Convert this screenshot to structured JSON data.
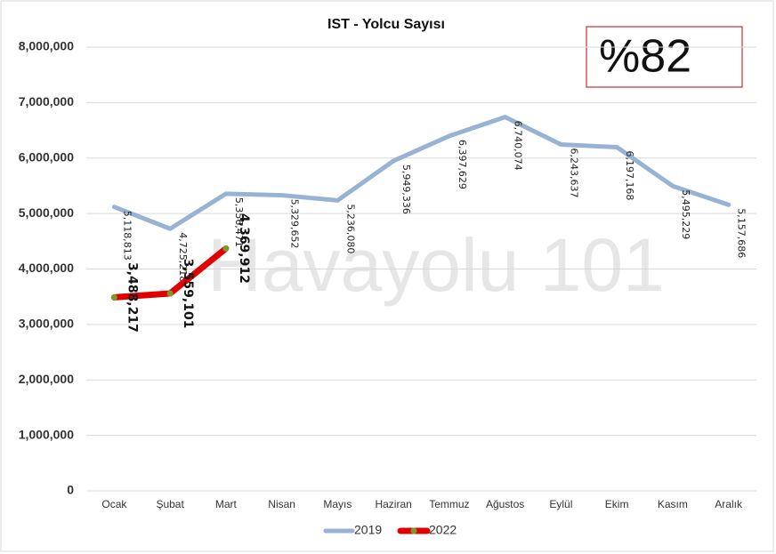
{
  "chart_data": {
    "type": "line",
    "title": "IST - Yolcu Sayısı",
    "annotation": "%82",
    "watermark": "Havayolu 101",
    "categories": [
      "Ocak",
      "Şubat",
      "Mart",
      "Nisan",
      "Mayıs",
      "Haziran",
      "Temmuz",
      "Ağustos",
      "Eylül",
      "Ekim",
      "Kasım",
      "Aralık"
    ],
    "series": [
      {
        "name": "2019",
        "color": "#98b2d3",
        "values": [
          5118813,
          4725218,
          5356471,
          5329652,
          5236080,
          5949336,
          6397629,
          6740074,
          6243637,
          6197168,
          5495229,
          5157686
        ],
        "value_labels": [
          "5,118,813",
          "4,725,218",
          "5,356,471",
          "5,329,652",
          "5,236,080",
          "5,949,336",
          "6,397,629",
          "6,740,074",
          "6,243,637",
          "6,197,168",
          "5,495,229",
          "5,157,686"
        ]
      },
      {
        "name": "2022",
        "color": "#e00000",
        "marker_color": "#7a9a2a",
        "values": [
          3488217,
          3559101,
          4369912,
          null,
          null,
          null,
          null,
          null,
          null,
          null,
          null,
          null
        ],
        "value_labels": [
          "3,488,217",
          "3,559,101",
          "4,369,912",
          null,
          null,
          null,
          null,
          null,
          null,
          null,
          null,
          null
        ]
      }
    ],
    "ylim": [
      0,
      8000000
    ],
    "yticks": [
      0,
      {
        "value": 1000000,
        "label": "1,000,000"
      },
      {
        "value": 2000000,
        "label": "2,000,000"
      },
      {
        "value": 3000000,
        "label": "3,000,000"
      },
      {
        "value": 4000000,
        "label": "4,000,000"
      },
      {
        "value": 5000000,
        "label": "5,000,000"
      },
      {
        "value": 6000000,
        "label": "6,000,000"
      },
      {
        "value": 7000000,
        "label": "7,000,000"
      },
      {
        "value": 8000000,
        "label": "8,000,000"
      }
    ],
    "grid": true,
    "legend": "bottom"
  }
}
